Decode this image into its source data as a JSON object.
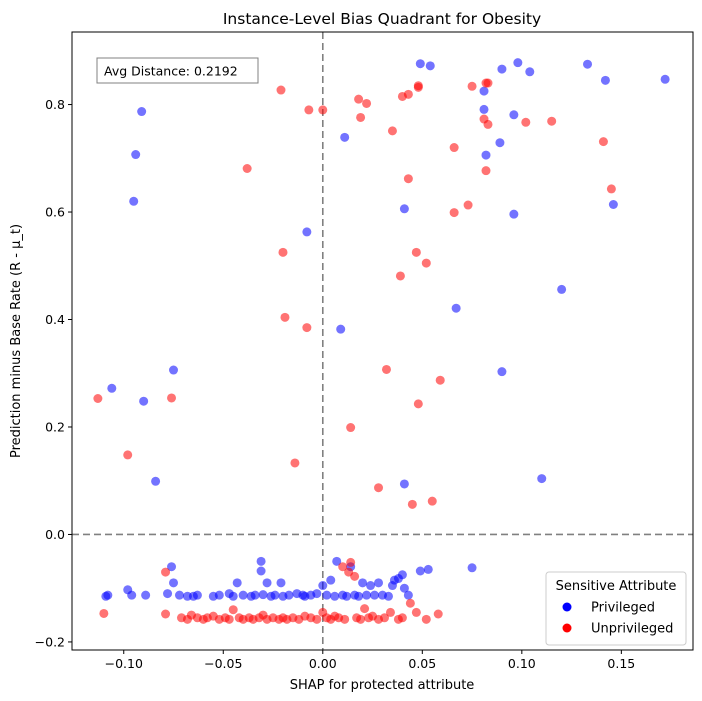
{
  "chart_data": {
    "type": "scatter",
    "title": "Instance-Level Bias Quadrant for Obesity",
    "xlabel": "SHAP for protected attribute",
    "ylabel": "Prediction minus Base Rate (R - μ_t)",
    "xlim": [
      -0.126,
      0.186
    ],
    "ylim": [
      -0.215,
      0.935
    ],
    "xticks": [
      -0.1,
      -0.05,
      0.0,
      0.05,
      0.1,
      0.15
    ],
    "xtick_labels": [
      "−0.10",
      "−0.05",
      "0.00",
      "0.05",
      "0.10",
      "0.15"
    ],
    "yticks": [
      -0.2,
      0.0,
      0.2,
      0.4,
      0.6,
      0.8
    ],
    "ytick_labels": [
      "−0.2",
      "0.0",
      "0.2",
      "0.4",
      "0.6",
      "0.8"
    ],
    "reference_lines": {
      "x": 0.0,
      "y": 0.0
    },
    "annotation": "Avg Distance: 0.2192",
    "legend": {
      "title": "Sensitive Attribute",
      "position": "lower-right",
      "entries": [
        {
          "label": "Privileged",
          "color": "#0000ff"
        },
        {
          "label": "Unprivileged",
          "color": "#ff0000"
        }
      ]
    },
    "series": [
      {
        "name": "Privileged",
        "color": "#0000ff",
        "points": [
          [
            -0.109,
            -0.115
          ],
          [
            -0.108,
            -0.113
          ],
          [
            -0.098,
            -0.103
          ],
          [
            -0.096,
            -0.113
          ],
          [
            -0.089,
            -0.113
          ],
          [
            -0.078,
            -0.11
          ],
          [
            -0.076,
            -0.06
          ],
          [
            -0.075,
            -0.09
          ],
          [
            -0.072,
            -0.113
          ],
          [
            -0.068,
            -0.115
          ],
          [
            -0.065,
            -0.115
          ],
          [
            -0.063,
            -0.113
          ],
          [
            -0.055,
            -0.115
          ],
          [
            -0.052,
            -0.113
          ],
          [
            -0.047,
            -0.11
          ],
          [
            -0.045,
            -0.115
          ],
          [
            -0.043,
            -0.09
          ],
          [
            -0.04,
            -0.113
          ],
          [
            -0.036,
            -0.115
          ],
          [
            -0.034,
            -0.113
          ],
          [
            -0.031,
            -0.05
          ],
          [
            -0.031,
            -0.068
          ],
          [
            -0.03,
            -0.112
          ],
          [
            -0.028,
            -0.09
          ],
          [
            -0.026,
            -0.115
          ],
          [
            -0.024,
            -0.113
          ],
          [
            -0.021,
            -0.09
          ],
          [
            -0.02,
            -0.115
          ],
          [
            -0.017,
            -0.113
          ],
          [
            -0.013,
            -0.11
          ],
          [
            -0.01,
            -0.113
          ],
          [
            -0.009,
            -0.115
          ],
          [
            -0.006,
            -0.113
          ],
          [
            -0.003,
            -0.11
          ],
          [
            0.0,
            -0.095
          ],
          [
            0.002,
            -0.113
          ],
          [
            0.004,
            -0.085
          ],
          [
            0.006,
            -0.115
          ],
          [
            0.007,
            -0.05
          ],
          [
            0.01,
            -0.113
          ],
          [
            0.012,
            -0.115
          ],
          [
            0.014,
            -0.06
          ],
          [
            0.016,
            -0.113
          ],
          [
            0.018,
            -0.115
          ],
          [
            0.02,
            -0.09
          ],
          [
            0.022,
            -0.113
          ],
          [
            0.024,
            -0.095
          ],
          [
            0.026,
            -0.113
          ],
          [
            0.028,
            -0.09
          ],
          [
            0.03,
            -0.113
          ],
          [
            0.033,
            -0.115
          ],
          [
            0.035,
            -0.095
          ],
          [
            0.036,
            -0.085
          ],
          [
            0.038,
            -0.082
          ],
          [
            0.04,
            -0.075
          ],
          [
            0.041,
            -0.1
          ],
          [
            0.043,
            -0.113
          ],
          [
            0.049,
            -0.068
          ],
          [
            0.053,
            -0.065
          ],
          [
            0.075,
            -0.062
          ],
          [
            -0.084,
            0.099
          ],
          [
            0.041,
            0.094
          ],
          [
            0.11,
            0.104
          ],
          [
            -0.106,
            0.272
          ],
          [
            -0.09,
            0.248
          ],
          [
            -0.075,
            0.306
          ],
          [
            0.009,
            0.382
          ],
          [
            0.067,
            0.421
          ],
          [
            0.09,
            0.303
          ],
          [
            0.12,
            0.456
          ],
          [
            -0.008,
            0.563
          ],
          [
            -0.095,
            0.62
          ],
          [
            0.041,
            0.606
          ],
          [
            0.096,
            0.596
          ],
          [
            0.146,
            0.614
          ],
          [
            -0.094,
            0.707
          ],
          [
            -0.091,
            0.787
          ],
          [
            0.011,
            0.739
          ],
          [
            0.082,
            0.706
          ],
          [
            0.089,
            0.729
          ],
          [
            0.096,
            0.781
          ],
          [
            0.081,
            0.791
          ],
          [
            0.081,
            0.825
          ],
          [
            0.09,
            0.866
          ],
          [
            0.098,
            0.878
          ],
          [
            0.104,
            0.861
          ],
          [
            0.133,
            0.875
          ],
          [
            0.142,
            0.845
          ],
          [
            0.172,
            0.847
          ],
          [
            0.049,
            0.876
          ],
          [
            0.054,
            0.872
          ],
          [
            -0.07,
            0.867
          ]
        ]
      },
      {
        "name": "Unprivileged",
        "color": "#ff0000",
        "points": [
          [
            -0.11,
            -0.147
          ],
          [
            -0.079,
            -0.148
          ],
          [
            -0.079,
            -0.07
          ],
          [
            -0.071,
            -0.155
          ],
          [
            -0.068,
            -0.158
          ],
          [
            -0.066,
            -0.15
          ],
          [
            -0.063,
            -0.155
          ],
          [
            -0.06,
            -0.158
          ],
          [
            -0.058,
            -0.155
          ],
          [
            -0.055,
            -0.152
          ],
          [
            -0.052,
            -0.158
          ],
          [
            -0.049,
            -0.155
          ],
          [
            -0.047,
            -0.158
          ],
          [
            -0.045,
            -0.14
          ],
          [
            -0.042,
            -0.155
          ],
          [
            -0.04,
            -0.158
          ],
          [
            -0.037,
            -0.155
          ],
          [
            -0.035,
            -0.158
          ],
          [
            -0.032,
            -0.155
          ],
          [
            -0.03,
            -0.15
          ],
          [
            -0.028,
            -0.158
          ],
          [
            -0.025,
            -0.155
          ],
          [
            -0.022,
            -0.158
          ],
          [
            -0.02,
            -0.155
          ],
          [
            -0.018,
            -0.158
          ],
          [
            -0.015,
            -0.155
          ],
          [
            -0.012,
            -0.158
          ],
          [
            -0.009,
            -0.152
          ],
          [
            -0.006,
            -0.155
          ],
          [
            -0.003,
            -0.158
          ],
          [
            0.0,
            -0.145
          ],
          [
            0.002,
            -0.155
          ],
          [
            0.004,
            -0.158
          ],
          [
            0.006,
            -0.152
          ],
          [
            0.008,
            -0.155
          ],
          [
            0.01,
            -0.06
          ],
          [
            0.011,
            -0.158
          ],
          [
            0.013,
            -0.07
          ],
          [
            0.014,
            -0.052
          ],
          [
            0.016,
            -0.078
          ],
          [
            0.017,
            -0.155
          ],
          [
            0.019,
            -0.158
          ],
          [
            0.021,
            -0.138
          ],
          [
            0.023,
            -0.155
          ],
          [
            0.025,
            -0.152
          ],
          [
            0.028,
            -0.158
          ],
          [
            0.031,
            -0.155
          ],
          [
            0.034,
            -0.145
          ],
          [
            0.038,
            -0.158
          ],
          [
            0.04,
            -0.155
          ],
          [
            0.044,
            -0.128
          ],
          [
            0.047,
            -0.145
          ],
          [
            0.052,
            -0.158
          ],
          [
            0.058,
            -0.148
          ],
          [
            -0.113,
            0.253
          ],
          [
            -0.098,
            0.148
          ],
          [
            -0.076,
            0.254
          ],
          [
            -0.014,
            0.133
          ],
          [
            0.014,
            0.199
          ],
          [
            0.028,
            0.087
          ],
          [
            0.045,
            0.056
          ],
          [
            0.048,
            0.243
          ],
          [
            0.055,
            0.062
          ],
          [
            0.032,
            0.307
          ],
          [
            0.059,
            0.287
          ],
          [
            -0.019,
            0.404
          ],
          [
            -0.008,
            0.385
          ],
          [
            0.039,
            0.481
          ],
          [
            0.047,
            0.525
          ],
          [
            0.052,
            0.505
          ],
          [
            -0.02,
            0.525
          ],
          [
            0.043,
            0.662
          ],
          [
            0.066,
            0.599
          ],
          [
            0.073,
            0.613
          ],
          [
            0.082,
            0.677
          ],
          [
            0.066,
            0.72
          ],
          [
            0.141,
            0.731
          ],
          [
            0.145,
            0.643
          ],
          [
            -0.038,
            0.681
          ],
          [
            -0.021,
            0.827
          ],
          [
            -0.007,
            0.79
          ],
          [
            0.0,
            0.79
          ],
          [
            0.019,
            0.776
          ],
          [
            0.018,
            0.81
          ],
          [
            0.022,
            0.802
          ],
          [
            0.035,
            0.751
          ],
          [
            0.04,
            0.815
          ],
          [
            0.043,
            0.819
          ],
          [
            0.048,
            0.832
          ],
          [
            0.048,
            0.835
          ],
          [
            0.075,
            0.834
          ],
          [
            0.081,
            0.773
          ],
          [
            0.082,
            0.84
          ],
          [
            0.083,
            0.84
          ],
          [
            0.083,
            0.763
          ],
          [
            0.102,
            0.767
          ],
          [
            0.115,
            0.769
          ]
        ]
      }
    ]
  }
}
